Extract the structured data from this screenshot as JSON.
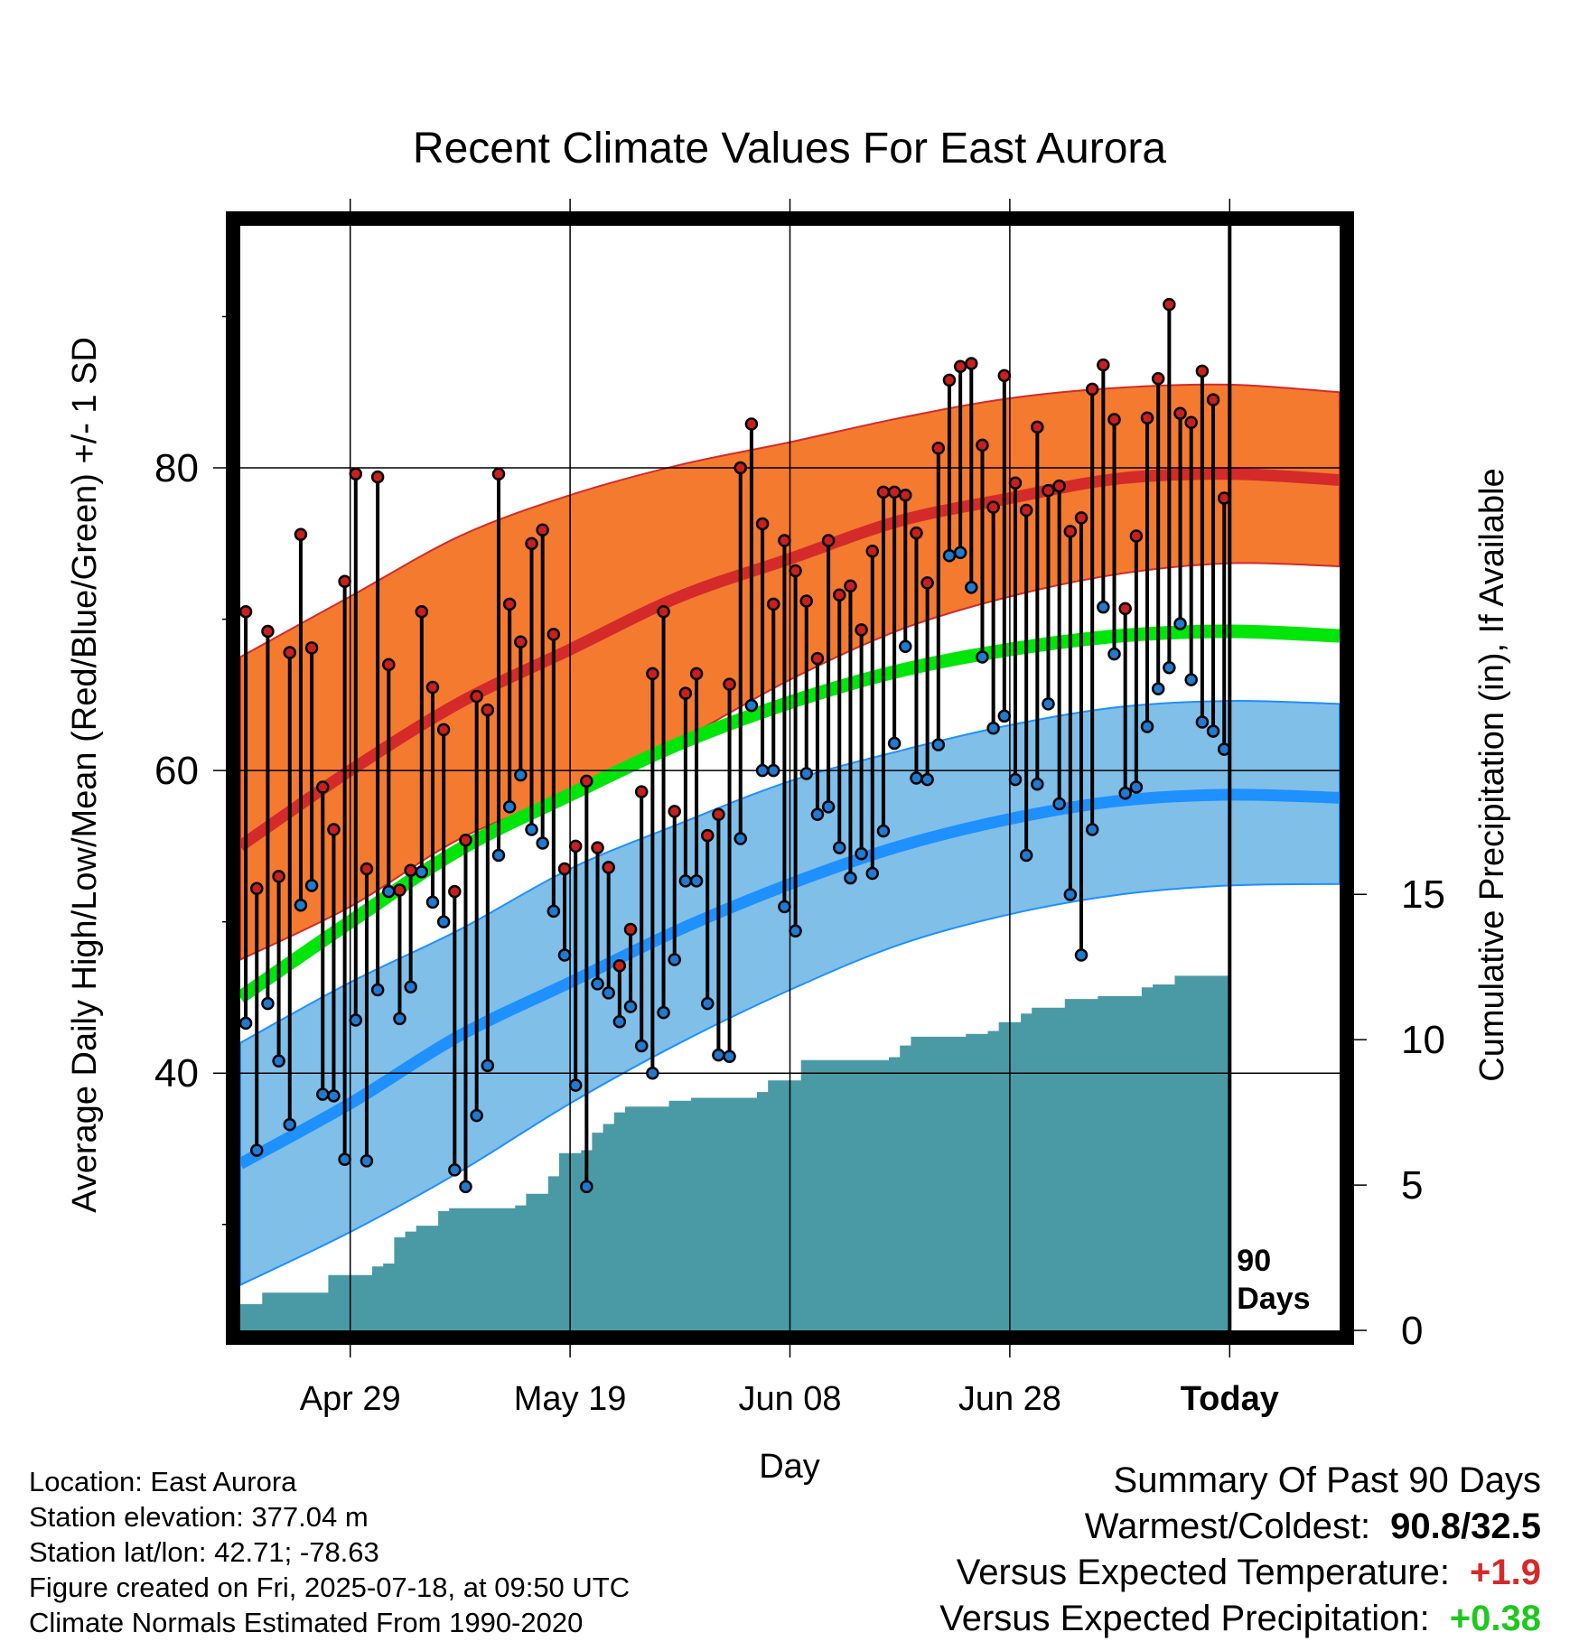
{
  "chart_data": {
    "type": "line",
    "title": "Recent Climate Values For East Aurora",
    "xlabel": "Day",
    "ylabel": "Average Daily High/Low/Mean (Red/Blue/Green) +/- 1 SD",
    "y2label": "Cumulative Precipitation (in), If Available",
    "ylim": [
      23,
      96
    ],
    "y_ticks": [
      40,
      60,
      80
    ],
    "y2lim": [
      0,
      38
    ],
    "y2_ticks": [
      0,
      5,
      10,
      15
    ],
    "x_tick_labels": [
      "Apr 29",
      "May 19",
      "Jun 08",
      "Jun 28",
      "Today"
    ],
    "x_tick_days": [
      10,
      30,
      50,
      70,
      90
    ],
    "xlim": [
      0,
      100
    ],
    "today_marker": {
      "day": 90,
      "label_line1": "90",
      "label_line2": "Days"
    },
    "grid": true,
    "colors": {
      "high_band": "#f47a30",
      "high_mean": "#d42a2a",
      "low_band": "#7fbfe8",
      "low_mean": "#1e90ff",
      "mean_line": "#00e60a",
      "precip": "#4a9aa5",
      "high_dot": "#c8201e",
      "low_dot": "#1f7ad0",
      "positive_temp": "#d42a2a",
      "positive_precip": "#1fc81f"
    },
    "normals": {
      "x": [
        0,
        10,
        20,
        30,
        40,
        50,
        60,
        70,
        80,
        90,
        100
      ],
      "high_upper": [
        67.5,
        71.5,
        75.5,
        78.2,
        80.2,
        81.7,
        83.3,
        84.6,
        85.3,
        85.5,
        85.0
      ],
      "high_mean": [
        55.0,
        60.0,
        64.5,
        68.0,
        71.5,
        74.0,
        76.5,
        78.0,
        79.3,
        79.6,
        79.2
      ],
      "high_lower": [
        47.5,
        51.0,
        55.5,
        58.5,
        62.0,
        66.0,
        69.3,
        71.5,
        73.0,
        73.7,
        73.5
      ],
      "mean": [
        45.0,
        50.0,
        54.8,
        58.4,
        61.8,
        64.5,
        66.6,
        68.0,
        68.9,
        69.2,
        68.9
      ],
      "low_upper": [
        42.0,
        46.0,
        49.5,
        53.5,
        56.5,
        59.3,
        61.3,
        63.0,
        64.2,
        64.6,
        64.4
      ],
      "low_mean": [
        34.0,
        38.0,
        42.5,
        46.0,
        49.5,
        52.5,
        55.0,
        56.8,
        58.0,
        58.4,
        58.2
      ],
      "low_lower": [
        26.0,
        29.5,
        33.5,
        38.0,
        42.0,
        45.5,
        48.5,
        50.5,
        51.8,
        52.4,
        52.5
      ]
    },
    "series": [
      {
        "name": "High",
        "x": [
          0,
          1,
          2,
          3,
          4,
          5,
          6,
          7,
          8,
          9,
          10,
          11,
          12,
          13,
          14,
          15,
          16,
          17,
          18,
          19,
          20,
          21,
          22,
          23,
          24,
          25,
          26,
          27,
          28,
          29,
          30,
          31,
          32,
          33,
          34,
          35,
          36,
          37,
          38,
          39,
          40,
          41,
          42,
          43,
          44,
          45,
          46,
          47,
          48,
          49,
          50,
          51,
          52,
          53,
          54,
          55,
          56,
          57,
          58,
          59,
          60,
          61,
          62,
          63,
          64,
          65,
          66,
          67,
          68,
          69,
          70,
          71,
          72,
          73,
          74,
          75,
          76,
          77,
          78,
          79,
          80,
          81,
          82,
          83,
          84,
          85,
          86,
          87,
          88,
          89
        ],
        "values": [
          70.5,
          52.2,
          69.2,
          53.0,
          67.8,
          75.6,
          68.1,
          58.9,
          56.1,
          72.5,
          79.6,
          53.5,
          79.4,
          67.0,
          52.1,
          53.4,
          70.5,
          65.5,
          62.7,
          52.0,
          55.4,
          64.9,
          64.0,
          79.6,
          71.0,
          68.5,
          75.0,
          75.9,
          69.0,
          53.5,
          55.0,
          59.3,
          54.9,
          53.6,
          47.1,
          49.5,
          58.6,
          66.4,
          70.5,
          57.3,
          65.1,
          66.4,
          55.7,
          57.1,
          65.7,
          80.0,
          82.9,
          76.3,
          71.0,
          75.2,
          73.2,
          71.2,
          67.4,
          75.2,
          71.6,
          72.2,
          69.3,
          74.5,
          78.4,
          78.4,
          78.2,
          75.7,
          72.4,
          81.3,
          85.8,
          86.7,
          86.9,
          81.5,
          77.4,
          86.1,
          79.0,
          77.2,
          82.7,
          78.5,
          78.8,
          75.8,
          76.7,
          85.2,
          86.8,
          83.2,
          70.7,
          75.5,
          83.3,
          85.9,
          90.8,
          83.6,
          83.0,
          86.4,
          84.5,
          78.0
        ]
      },
      {
        "name": "Low",
        "x": [
          0,
          1,
          2,
          3,
          4,
          5,
          6,
          7,
          8,
          9,
          10,
          11,
          12,
          13,
          14,
          15,
          16,
          17,
          18,
          19,
          20,
          21,
          22,
          23,
          24,
          25,
          26,
          27,
          28,
          29,
          30,
          31,
          32,
          33,
          34,
          35,
          36,
          37,
          38,
          39,
          40,
          41,
          42,
          43,
          44,
          45,
          46,
          47,
          48,
          49,
          50,
          51,
          52,
          53,
          54,
          55,
          56,
          57,
          58,
          59,
          60,
          61,
          62,
          63,
          64,
          65,
          66,
          67,
          68,
          69,
          70,
          71,
          72,
          73,
          74,
          75,
          76,
          77,
          78,
          79,
          80,
          81,
          82,
          83,
          84,
          85,
          86,
          87,
          88,
          89
        ],
        "values": [
          43.3,
          34.9,
          44.6,
          40.8,
          36.6,
          51.1,
          52.4,
          38.6,
          38.5,
          34.3,
          43.5,
          34.2,
          45.5,
          52.0,
          43.6,
          45.7,
          53.3,
          51.3,
          50.0,
          33.6,
          32.5,
          37.2,
          40.5,
          54.4,
          57.6,
          59.7,
          56.1,
          55.2,
          50.7,
          47.8,
          39.2,
          32.5,
          45.9,
          45.3,
          43.4,
          44.4,
          41.8,
          40.0,
          44.0,
          47.5,
          52.7,
          52.7,
          44.6,
          41.2,
          41.1,
          55.5,
          64.3,
          60.0,
          60.0,
          51.0,
          49.4,
          59.8,
          57.1,
          57.6,
          54.9,
          52.9,
          54.5,
          53.2,
          56.0,
          61.8,
          68.2,
          59.5,
          59.4,
          61.7,
          74.2,
          74.4,
          72.1,
          67.5,
          62.8,
          63.6,
          59.4,
          54.4,
          59.1,
          64.4,
          57.8,
          51.8,
          47.8,
          56.1,
          70.8,
          67.7,
          58.5,
          58.9,
          62.9,
          65.4,
          66.8,
          69.7,
          66.0,
          63.2,
          62.6,
          61.4
        ]
      }
    ],
    "precip_cumulative": {
      "x": [
        0,
        2,
        6,
        8,
        10,
        12,
        13,
        14,
        15,
        16,
        18,
        19,
        20,
        21,
        25,
        26,
        28,
        29,
        30,
        31,
        32,
        33,
        34,
        35,
        37,
        39,
        41,
        43,
        47,
        48,
        49,
        50,
        51,
        53,
        57,
        59,
        60,
        61,
        64,
        66,
        68,
        69,
        70,
        71,
        72,
        73,
        75,
        76,
        78,
        79,
        80,
        82,
        83,
        84,
        85,
        86,
        90,
        90.01
      ],
      "values": [
        0.9,
        1.3,
        1.3,
        1.9,
        1.9,
        2.2,
        2.3,
        3.2,
        3.4,
        3.6,
        4.1,
        4.2,
        4.2,
        4.2,
        4.3,
        4.7,
        5.3,
        6.1,
        6.1,
        6.2,
        6.8,
        7.1,
        7.5,
        7.7,
        7.7,
        7.9,
        8.0,
        8.0,
        8.2,
        8.6,
        8.6,
        8.6,
        9.3,
        9.3,
        9.3,
        9.4,
        9.8,
        10.1,
        10.1,
        10.2,
        10.3,
        10.6,
        10.6,
        10.9,
        11.1,
        11.1,
        11.4,
        11.4,
        11.5,
        11.5,
        11.5,
        11.8,
        11.9,
        11.9,
        12.2,
        12.2,
        12.2,
        12.2
      ]
    }
  },
  "info": {
    "location": "Location: East Aurora",
    "elevation": "Station elevation: 377.04 m",
    "latlon": "Station lat/lon: 42.71; -78.63",
    "created": "Figure created on Fri, 2025-07-18, at 09:50 UTC",
    "normals_note": "Climate Normals Estimated From 1990-2020"
  },
  "summary": {
    "heading": "Summary Of Past 90 Days",
    "warm_cold_label": "Warmest/Coldest:",
    "warm_cold_value": "90.8/32.5",
    "temp_label": "Versus Expected Temperature:",
    "temp_value": "+1.9",
    "precip_label": "Versus Expected Precipitation:",
    "precip_value": "+0.38"
  }
}
